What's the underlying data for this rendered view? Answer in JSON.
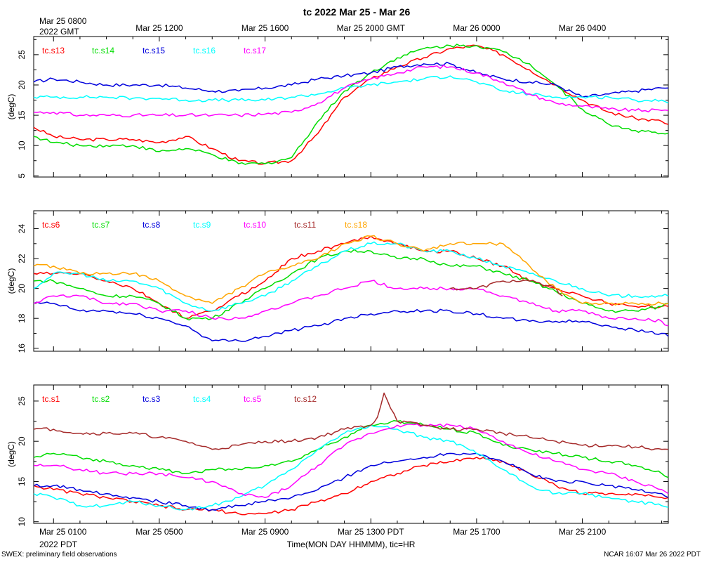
{
  "title": "tc 2022 Mar 25 - Mar 26",
  "top_axis": {
    "first_label_line1": "Mar 25 0800",
    "first_label_line2": "2022 GMT",
    "labels": [
      "Mar 25 1200",
      "Mar 25 1600",
      "Mar 25 2000 GMT",
      "Mar 26 0000",
      "Mar 26 0400"
    ]
  },
  "bottom_axis": {
    "first_label_line1": "Mar 25 0100",
    "first_label_line2": "2022 PDT",
    "labels": [
      "Mar 25 0500",
      "Mar 25 0900",
      "Mar 25 1300 PDT",
      "Mar 25 1700",
      "Mar 25 2100"
    ],
    "xlabel": "Time(MON DAY HHMMM), tic=HR"
  },
  "footer": {
    "left": "SWEX: preliminary field observations",
    "right": "NCAR 16:07 Mar 26 2022 PDT"
  },
  "chart_data": [
    {
      "type": "line",
      "name": "panel-top",
      "ylabel": "(degC)",
      "ylim": [
        4.8,
        28
      ],
      "yticks": [
        5,
        10,
        15,
        20,
        25
      ],
      "xunit": "hours since Mar 25 0100 PDT",
      "xlim": [
        -0.75,
        23.25
      ],
      "series": [
        {
          "name": "tc.s13",
          "color": "#ff0000",
          "x": [
            -0.75,
            0,
            1,
            2,
            3,
            4,
            5,
            6,
            7,
            8,
            9,
            10,
            11,
            12,
            13,
            14,
            15,
            16,
            17,
            18,
            19,
            20,
            21,
            22,
            23,
            23.25
          ],
          "values": [
            13,
            11.5,
            11,
            11,
            11,
            10.5,
            11.5,
            9.5,
            7.5,
            7,
            7.5,
            12,
            18,
            21,
            23,
            24.5,
            26,
            26.5,
            25,
            22.5,
            20,
            17.5,
            15.5,
            14.5,
            14,
            13.5
          ]
        },
        {
          "name": "tc.s14",
          "color": "#00dd00",
          "x": [
            -0.75,
            0,
            1,
            2,
            3,
            4,
            5,
            6,
            7,
            8,
            9,
            10,
            11,
            12,
            13,
            14,
            15,
            16,
            17,
            18,
            19,
            20,
            21,
            22,
            23,
            23.25
          ],
          "values": [
            11.5,
            10.5,
            10,
            10,
            10,
            9,
            9.5,
            8.5,
            7,
            7,
            8,
            14,
            19,
            22,
            24.5,
            26,
            26.5,
            26.5,
            25.5,
            23.5,
            20,
            16,
            13.5,
            12.5,
            12,
            12
          ]
        },
        {
          "name": "tc.s15",
          "color": "#0000dd",
          "x": [
            -0.75,
            0,
            1,
            2,
            3,
            4,
            5,
            6,
            7,
            8,
            9,
            10,
            11,
            12,
            13,
            14,
            15,
            16,
            17,
            18,
            19,
            20,
            21,
            22,
            23,
            23.25
          ],
          "values": [
            20.5,
            21,
            20.5,
            20,
            20,
            20,
            19.5,
            19,
            19,
            19.5,
            20,
            21,
            21.5,
            22,
            23,
            23.5,
            23.5,
            22,
            21,
            20.5,
            20,
            18,
            18.5,
            19,
            19.5,
            19.5
          ]
        },
        {
          "name": "tc.s16",
          "color": "#00ffff",
          "x": [
            -0.75,
            0,
            1,
            2,
            3,
            4,
            5,
            6,
            7,
            8,
            9,
            10,
            11,
            12,
            13,
            14,
            15,
            16,
            17,
            18,
            19,
            20,
            21,
            22,
            23,
            23.25
          ],
          "values": [
            18,
            18,
            18,
            18,
            17.8,
            17.8,
            17.5,
            17.5,
            17.5,
            17.5,
            18,
            18.5,
            19.5,
            20,
            20.5,
            21,
            21.5,
            20.5,
            19,
            18.5,
            18,
            18,
            18,
            17.5,
            17.5,
            17
          ]
        },
        {
          "name": "tc.s17",
          "color": "#ff00ff",
          "x": [
            -0.75,
            0,
            1,
            2,
            3,
            4,
            5,
            6,
            7,
            8,
            9,
            10,
            11,
            12,
            13,
            14,
            15,
            16,
            17,
            18,
            19,
            20,
            21,
            22,
            23,
            23.25
          ],
          "values": [
            15.5,
            15.5,
            15,
            15,
            15,
            15,
            15,
            15,
            15,
            15.2,
            15.5,
            17,
            19.5,
            21,
            22,
            23,
            23,
            22,
            20.5,
            18.5,
            17,
            16.5,
            16,
            15.8,
            15.8,
            15.8
          ]
        }
      ]
    },
    {
      "type": "line",
      "name": "panel-middle",
      "ylabel": "(degC)",
      "ylim": [
        15.8,
        25.2
      ],
      "yticks": [
        16,
        18,
        20,
        22,
        24
      ],
      "xunit": "hours since Mar 25 0100 PDT",
      "xlim": [
        -0.75,
        23.25
      ],
      "series": [
        {
          "name": "tc.s6",
          "color": "#ff0000",
          "x": [
            -0.75,
            0,
            1,
            2,
            3,
            4,
            5,
            6,
            7,
            8,
            9,
            10,
            11,
            12,
            13,
            14,
            15,
            16,
            17,
            18,
            19,
            20,
            21,
            22,
            23,
            23.25
          ],
          "values": [
            21,
            21,
            21,
            20.5,
            20,
            19,
            18,
            18.5,
            19.5,
            20.5,
            22,
            22.5,
            23,
            23.5,
            23,
            22.5,
            22.5,
            22,
            21.5,
            20.5,
            20,
            19.5,
            19,
            18.8,
            18.8,
            18.8
          ]
        },
        {
          "name": "tc.s7",
          "color": "#00dd00",
          "x": [
            -0.75,
            0,
            1,
            2,
            3,
            4,
            5,
            6,
            7,
            8,
            9,
            10,
            11,
            12,
            13,
            14,
            15,
            16,
            17,
            18,
            19,
            20,
            21,
            22,
            23,
            23.25
          ],
          "values": [
            20.5,
            20.5,
            20,
            19.5,
            19.5,
            19,
            18,
            18,
            19,
            20,
            21,
            22,
            22.5,
            22.5,
            22,
            22,
            21.5,
            21.5,
            21,
            20.5,
            19.8,
            19,
            18.5,
            18.5,
            18.8,
            19
          ]
        },
        {
          "name": "tc.s8",
          "color": "#0000dd",
          "x": [
            -0.75,
            0,
            1,
            2,
            3,
            4,
            5,
            6,
            7,
            8,
            9,
            10,
            11,
            12,
            13,
            14,
            15,
            16,
            17,
            18,
            19,
            20,
            21,
            22,
            23,
            23.25
          ],
          "values": [
            19,
            19,
            18.5,
            18.5,
            18.3,
            18,
            17.5,
            16.5,
            16.5,
            16.8,
            17.2,
            17.5,
            18,
            18.3,
            18.5,
            18.5,
            18.5,
            18.3,
            18,
            17.8,
            17.8,
            17.8,
            17.5,
            17.2,
            17,
            16.8
          ]
        },
        {
          "name": "tc.s9",
          "color": "#00ffff",
          "x": [
            -0.75,
            0,
            1,
            2,
            3,
            4,
            5,
            6,
            7,
            8,
            9,
            10,
            11,
            12,
            13,
            14,
            15,
            16,
            17,
            18,
            19,
            20,
            21,
            22,
            23,
            23.25
          ],
          "values": [
            20,
            21,
            21,
            20.5,
            20.5,
            20,
            19,
            18.5,
            19,
            19.5,
            20.5,
            21.5,
            22.5,
            23,
            23,
            22.5,
            22.5,
            22,
            21.5,
            21,
            20.5,
            20,
            19.5,
            19.5,
            19.5,
            19.5
          ]
        },
        {
          "name": "tc.s10",
          "color": "#ff00ff",
          "x": [
            -0.75,
            0,
            1,
            2,
            3,
            4,
            5,
            6,
            7,
            8,
            9,
            10,
            11,
            12,
            13,
            14,
            15,
            16,
            17,
            18,
            19,
            20,
            21,
            22,
            23,
            23.25
          ],
          "values": [
            19,
            19.5,
            19.5,
            19,
            19,
            18.5,
            18.5,
            18,
            18,
            18.5,
            19,
            19.5,
            20,
            20.5,
            20,
            20,
            20,
            20,
            19.5,
            19,
            18.5,
            18.5,
            18,
            18,
            17.8,
            17.5
          ]
        },
        {
          "name": "tc.s11",
          "color": "#a52a2a",
          "x": [
            15,
            16,
            17,
            18,
            19,
            19.25
          ],
          "values": [
            20,
            20,
            20.5,
            20.5,
            20,
            19.5
          ]
        },
        {
          "name": "tc.s18",
          "color": "#ffa500",
          "x": [
            -0.75,
            0,
            1,
            2,
            3,
            4,
            5,
            6,
            7,
            8,
            9,
            10,
            11,
            12,
            13,
            14,
            15,
            16,
            17,
            18,
            19,
            20,
            21,
            22,
            23,
            23.25
          ],
          "values": [
            21.5,
            21.5,
            21,
            21,
            21,
            20.5,
            19.5,
            19,
            20,
            21,
            21.5,
            22,
            23,
            23.5,
            23,
            22.5,
            23,
            23,
            23,
            21.5,
            20,
            19,
            19,
            19,
            19,
            19
          ]
        }
      ]
    },
    {
      "type": "line",
      "name": "panel-bottom",
      "ylabel": "(degC)",
      "ylim": [
        9.8,
        27
      ],
      "yticks": [
        10,
        15,
        20,
        25
      ],
      "xunit": "hours since Mar 25 0100 PDT",
      "xlim": [
        -0.75,
        23.25
      ],
      "series": [
        {
          "name": "tc.s1",
          "color": "#ff0000",
          "x": [
            -0.75,
            0,
            1,
            2,
            3,
            4,
            5,
            6,
            7,
            8,
            9,
            10,
            11,
            12,
            13,
            14,
            15,
            16,
            17,
            18,
            19,
            20,
            21,
            22,
            23,
            23.25
          ],
          "values": [
            14.5,
            14,
            13.5,
            13,
            12.5,
            12,
            11.5,
            11.5,
            11,
            11,
            11.5,
            12.5,
            13.5,
            15,
            16,
            17,
            17.5,
            18,
            17.5,
            16,
            14.5,
            13.5,
            13.5,
            13.5,
            13,
            13
          ]
        },
        {
          "name": "tc.s2",
          "color": "#00dd00",
          "x": [
            -0.75,
            0,
            1,
            2,
            3,
            4,
            5,
            6,
            7,
            8,
            9,
            10,
            11,
            12,
            13,
            14,
            15,
            16,
            17,
            18,
            19,
            20,
            21,
            22,
            23,
            23.25
          ],
          "values": [
            18,
            18.5,
            18,
            17.5,
            17,
            16.5,
            16,
            16.5,
            16.5,
            17,
            17.5,
            19,
            20.5,
            22,
            22.5,
            22,
            21.5,
            21,
            19.5,
            19,
            18.5,
            18,
            17.5,
            17,
            16,
            15.5
          ]
        },
        {
          "name": "tc.s3",
          "color": "#0000dd",
          "x": [
            -0.75,
            0,
            1,
            2,
            3,
            4,
            5,
            6,
            7,
            8,
            9,
            10,
            11,
            12,
            13,
            14,
            15,
            16,
            17,
            18,
            19,
            20,
            21,
            22,
            23,
            23.25
          ],
          "values": [
            14.5,
            14.5,
            14,
            13.5,
            13,
            12.5,
            12,
            11.5,
            12,
            12.5,
            13,
            14,
            15.5,
            17,
            17.5,
            18,
            18.5,
            18.5,
            17.5,
            16,
            15,
            15,
            14.5,
            14,
            13.5,
            13
          ]
        },
        {
          "name": "tc.s4",
          "color": "#00ffff",
          "x": [
            -0.75,
            0,
            1,
            2,
            3,
            4,
            5,
            6,
            7,
            8,
            9,
            10,
            11,
            12,
            13,
            14,
            15,
            16,
            17,
            18,
            19,
            20,
            21,
            22,
            23,
            23.25
          ],
          "values": [
            13.5,
            13,
            12,
            12,
            12.5,
            12,
            11.5,
            12,
            13,
            14.5,
            16.5,
            19,
            21,
            22,
            21.5,
            20.5,
            20,
            18.5,
            16.5,
            14.5,
            13.5,
            13.5,
            13,
            12.5,
            12,
            11.8
          ]
        },
        {
          "name": "tc.s5",
          "color": "#ff00ff",
          "x": [
            -0.75,
            0,
            1,
            2,
            3,
            4,
            5,
            6,
            7,
            8,
            9,
            10,
            11,
            12,
            13,
            14,
            15,
            16,
            17,
            18,
            19,
            20,
            21,
            22,
            23,
            23.25
          ],
          "values": [
            17,
            17,
            16.5,
            16,
            16,
            16,
            15.5,
            15,
            13.5,
            13,
            14.5,
            17,
            19.5,
            21,
            22,
            22,
            22,
            21.5,
            20,
            18.5,
            17.5,
            16.5,
            16,
            15,
            14,
            13.5
          ]
        },
        {
          "name": "tc.s12",
          "color": "#a52a2a",
          "x": [
            -0.75,
            0,
            1,
            2,
            3,
            4,
            5,
            6,
            7,
            8,
            9,
            10,
            11,
            12,
            12.25,
            12.5,
            13,
            14,
            15,
            16,
            17,
            18,
            19,
            20,
            21,
            22,
            23,
            23.25
          ],
          "values": [
            21.5,
            21.5,
            21,
            21,
            21,
            20.5,
            20,
            19,
            19.5,
            20,
            20,
            20.5,
            21.5,
            22,
            23,
            26,
            22.5,
            22,
            21.5,
            21.5,
            21,
            20.5,
            20,
            19.5,
            19.5,
            19.3,
            19,
            19
          ]
        }
      ]
    }
  ]
}
